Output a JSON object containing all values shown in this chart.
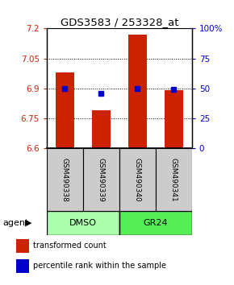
{
  "title": "GDS3583 / 253328_at",
  "samples": [
    "GSM490338",
    "GSM490339",
    "GSM490340",
    "GSM490341"
  ],
  "bar_values": [
    6.98,
    6.79,
    7.17,
    6.89
  ],
  "dot_values": [
    6.9,
    6.875,
    6.9,
    6.895
  ],
  "ylim": [
    6.6,
    7.2
  ],
  "yticks_left": [
    6.6,
    6.75,
    6.9,
    7.05,
    7.2
  ],
  "yticks_right": [
    0,
    25,
    50,
    75,
    100
  ],
  "bar_color": "#cc2200",
  "dot_color": "#0000cc",
  "bar_width": 0.5,
  "sample_box_color": "#cccccc",
  "group_box_color_dmso": "#aaffaa",
  "group_box_color_gr24": "#55ee55",
  "agent_label": "agent",
  "legend_bar_label": "transformed count",
  "legend_dot_label": "percentile rank within the sample"
}
